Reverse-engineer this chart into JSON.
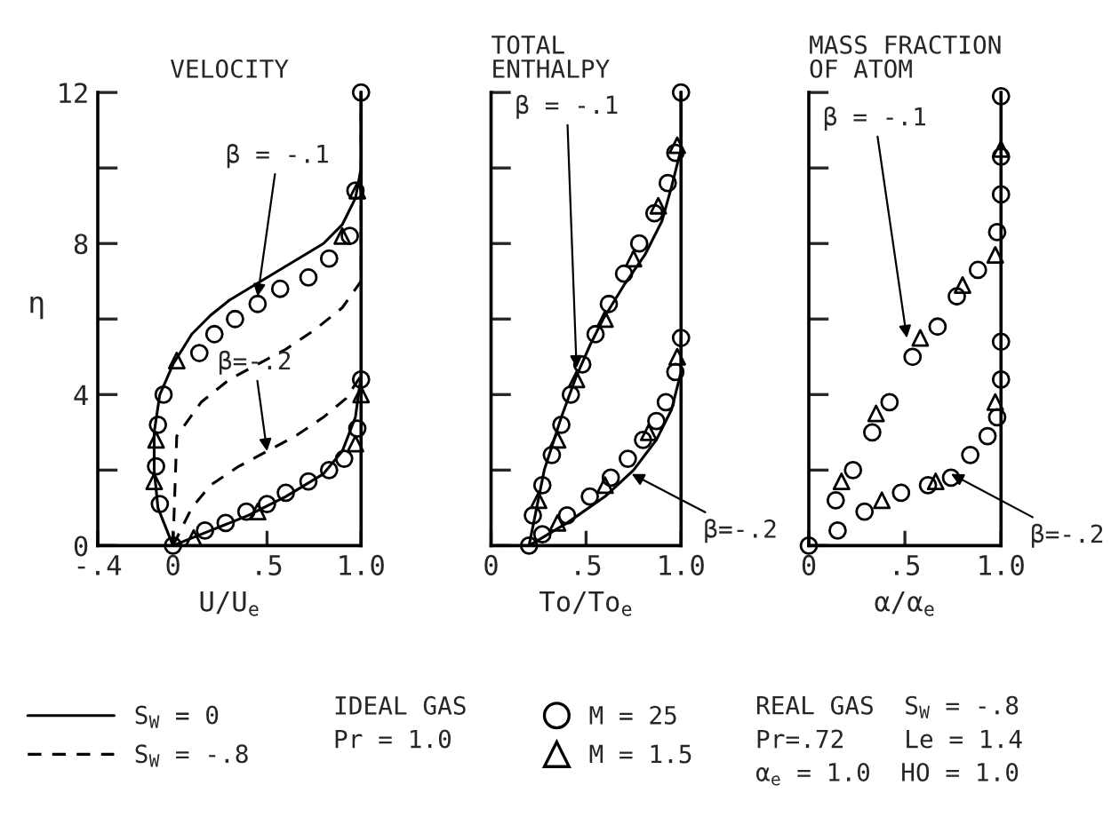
{
  "chart_data": [
    {
      "type": "line",
      "title": "VELOCITY",
      "xlabel": "U/U$_{e}$",
      "ylabel": "η",
      "xlim": [
        -0.4,
        1.0
      ],
      "xticks": [
        {
          "value": -0.4,
          "label": "-.4"
        },
        0,
        {
          "value": 0.5,
          "label": ".5"
        },
        {
          "value": 1.0,
          "label": "1.0"
        }
      ],
      "ylim": [
        0,
        12
      ],
      "yticks": [
        0,
        {
          "value": 2,
          "label": null
        },
        4,
        {
          "value": 6,
          "label": null
        },
        8,
        {
          "value": 10,
          "label": null
        },
        12
      ],
      "legend": "bottom",
      "series": [
        {
          "name": "S$_{W}$ = 0",
          "color": "#000000",
          "line_style": "solid",
          "x": [
            0,
            -0.08,
            -0.1,
            -0.1,
            -0.07,
            0,
            0.1,
            0.2,
            0.3,
            0.4,
            0.5,
            0.6,
            0.7,
            0.8,
            0.9,
            0.97,
            1.0,
            1.0
          ],
          "values": [
            0,
            1,
            2,
            3,
            4,
            4.8,
            5.6,
            6.1,
            6.5,
            6.8,
            7.1,
            7.4,
            7.7,
            8.0,
            8.5,
            9.2,
            10,
            12
          ]
        },
        {
          "color": "#000000",
          "line_style": "solid",
          "x": [
            0,
            0.2,
            0.4,
            0.6,
            0.8,
            0.9,
            0.97,
            1.0
          ],
          "values": [
            0,
            0.4,
            0.8,
            1.3,
            1.9,
            2.5,
            3.4,
            4.5
          ]
        },
        {
          "name": "S$_{W}$ = -.8",
          "color": "#000000",
          "line_style": "dashed",
          "x": [
            0,
            0.02,
            0.15,
            0.3,
            0.45,
            0.6,
            0.75,
            0.9,
            1.0,
            1.0
          ],
          "values": [
            0,
            2.9,
            3.8,
            4.4,
            4.8,
            5.2,
            5.7,
            6.3,
            7.0,
            12
          ]
        },
        {
          "color": "#000000",
          "line_style": "dashed",
          "x": [
            0,
            0.1,
            0.2,
            0.35,
            0.5,
            0.65,
            0.8,
            0.92,
            1.0
          ],
          "values": [
            0,
            1.0,
            1.6,
            2.1,
            2.5,
            2.9,
            3.4,
            3.9,
            4.5
          ]
        },
        {
          "type": "scatter",
          "name": "M = 25",
          "color": "#000000",
          "marker": "circle",
          "x": [
            0,
            -0.07,
            -0.09,
            -0.08,
            -0.05,
            0.14,
            0.22,
            0.33,
            0.45,
            0.57,
            0.72,
            0.83,
            0.94,
            0.97,
            1.0
          ],
          "values": [
            0,
            1.1,
            2.1,
            3.2,
            4.0,
            5.1,
            5.6,
            6.0,
            6.4,
            6.8,
            7.1,
            7.6,
            8.2,
            9.4,
            12
          ]
        },
        {
          "type": "scatter",
          "color": "#000000",
          "marker": "circle",
          "x": [
            0.17,
            0.28,
            0.39,
            0.5,
            0.6,
            0.72,
            0.83,
            0.91,
            0.98,
            1.0
          ],
          "values": [
            0.4,
            0.6,
            0.9,
            1.1,
            1.4,
            1.7,
            2.0,
            2.3,
            3.1,
            4.4
          ]
        },
        {
          "type": "scatter",
          "name": "M = 1.5",
          "color": "#000000",
          "marker": "triangle",
          "x": [
            -0.1,
            -0.09,
            0.02,
            0.9,
            0.98
          ],
          "values": [
            1.7,
            2.8,
            4.9,
            8.2,
            9.4
          ]
        },
        {
          "type": "scatter",
          "color": "#000000",
          "marker": "triangle",
          "x": [
            0.11,
            0.45,
            0.97,
            1.0
          ],
          "values": [
            0.2,
            0.9,
            2.7,
            4.0
          ]
        }
      ],
      "annotations": [
        {
          "text": "β = -.1",
          "x": 0.45,
          "y": 6.6
        },
        {
          "text": "β=-.2",
          "x": 0.5,
          "y": 2.5
        },
        "IDEAL GAS\nPr = 1.0",
        "REAL GAS  S$_{W}$ = -.8\nPr=.72    Le = 1.4\nα$_{e}$ = 1.0  HO = 1.0"
      ]
    },
    {
      "type": "line",
      "title": "TOTAL\nENTHALPY",
      "xlabel": "To/To$_{e}$",
      "xlim": [
        0,
        1.0
      ],
      "xticks": [
        0,
        {
          "value": 0.5,
          "label": ".5"
        },
        {
          "value": 1.0,
          "label": "1.0"
        }
      ],
      "ylim": [
        0,
        12
      ],
      "yticks": [
        0,
        2,
        4,
        6,
        8,
        10,
        12
      ],
      "tick_labels": "x",
      "series": [
        {
          "color": "#000000",
          "line_style": "solid",
          "x": [
            0.2,
            0.28,
            0.37,
            0.45,
            0.52,
            0.59,
            0.7,
            0.81,
            0.9,
            0.95,
            1.0,
            1.0
          ],
          "values": [
            0,
            2.0,
            3.4,
            4.5,
            5.3,
            6.0,
            6.9,
            7.7,
            8.6,
            9.5,
            10.5,
            12
          ]
        },
        {
          "color": "#000000",
          "line_style": "solid",
          "x": [
            0.2,
            0.4,
            0.6,
            0.75,
            0.87,
            0.95,
            1.0,
            1.0
          ],
          "values": [
            0,
            0.6,
            1.3,
            2.0,
            2.8,
            3.6,
            4.6,
            5.5
          ]
        },
        {
          "type": "scatter",
          "color": "#000000",
          "marker": "circle",
          "x": [
            0.2,
            0.22,
            0.27,
            0.32,
            0.37,
            0.42,
            0.48,
            0.55,
            0.62,
            0.7,
            0.78,
            0.86,
            0.93,
            0.97,
            1.0
          ],
          "values": [
            0,
            0.8,
            1.6,
            2.4,
            3.2,
            4.0,
            4.8,
            5.6,
            6.4,
            7.2,
            8.0,
            8.8,
            9.6,
            10.4,
            12
          ]
        },
        {
          "type": "scatter",
          "color": "#000000",
          "marker": "circle",
          "x": [
            0.27,
            0.4,
            0.52,
            0.63,
            0.72,
            0.8,
            0.87,
            0.92,
            0.97,
            1.0
          ],
          "values": [
            0.3,
            0.8,
            1.3,
            1.8,
            2.3,
            2.8,
            3.3,
            3.8,
            4.6,
            5.5
          ]
        },
        {
          "type": "scatter",
          "color": "#000000",
          "marker": "triangle",
          "x": [
            0.25,
            0.35,
            0.45,
            0.6,
            0.75,
            0.88,
            0.98
          ],
          "values": [
            1.2,
            2.8,
            4.4,
            6.0,
            7.6,
            9.0,
            10.6
          ]
        },
        {
          "type": "scatter",
          "color": "#000000",
          "marker": "triangle",
          "x": [
            0.35,
            0.6,
            0.83,
            0.98
          ],
          "values": [
            0.6,
            1.6,
            3.0,
            5.0
          ]
        }
      ],
      "annotations": [
        {
          "text": "β = -.1",
          "x": 0.45,
          "y": 4.7
        },
        {
          "text": "β=-.2",
          "x": 0.74,
          "y": 1.9
        }
      ]
    },
    {
      "type": "line",
      "title": "MASS FRACTION\nOF ATOM",
      "xlabel": "α/α$_{e}$",
      "xlim": [
        0,
        1.0
      ],
      "xticks": [
        0,
        {
          "value": 0.5,
          "label": ".5"
        },
        {
          "value": 1.0,
          "label": "1.0"
        }
      ],
      "ylim": [
        0,
        12
      ],
      "yticks": [
        0,
        2,
        4,
        6,
        8,
        10,
        12
      ],
      "tick_labels": "x",
      "series": [
        {
          "type": "scatter",
          "color": "#000000",
          "marker": "circle",
          "x": [
            0,
            0.14,
            0.23,
            0.33,
            0.42,
            0.54,
            0.67,
            0.77,
            0.88,
            0.98,
            1.0,
            1.0,
            1.0
          ],
          "values": [
            0,
            1.2,
            2.0,
            3.0,
            3.8,
            5.0,
            5.8,
            6.6,
            7.3,
            8.3,
            9.3,
            10.3,
            11.9
          ]
        },
        {
          "type": "scatter",
          "color": "#000000",
          "marker": "circle",
          "x": [
            0.15,
            0.29,
            0.48,
            0.62,
            0.74,
            0.84,
            0.93,
            0.98,
            1.0,
            1.0
          ],
          "values": [
            0.4,
            0.9,
            1.4,
            1.6,
            1.8,
            2.4,
            2.9,
            3.4,
            4.4,
            5.4
          ]
        },
        {
          "type": "scatter",
          "color": "#000000",
          "marker": "triangle",
          "x": [
            0.17,
            0.35,
            0.58,
            0.8,
            0.97,
            1.0
          ],
          "values": [
            1.7,
            3.5,
            5.5,
            6.9,
            7.7,
            10.5
          ]
        },
        {
          "type": "scatter",
          "color": "#000000",
          "marker": "triangle",
          "x": [
            0.38,
            0.66,
            0.97
          ],
          "values": [
            1.2,
            1.7,
            3.8
          ]
        }
      ],
      "annotations": [
        {
          "text": "β = -.1",
          "x": 0.51,
          "y": 5.5
        },
        {
          "text": "β=-.2",
          "x": 0.74,
          "y": 1.9
        }
      ]
    }
  ]
}
